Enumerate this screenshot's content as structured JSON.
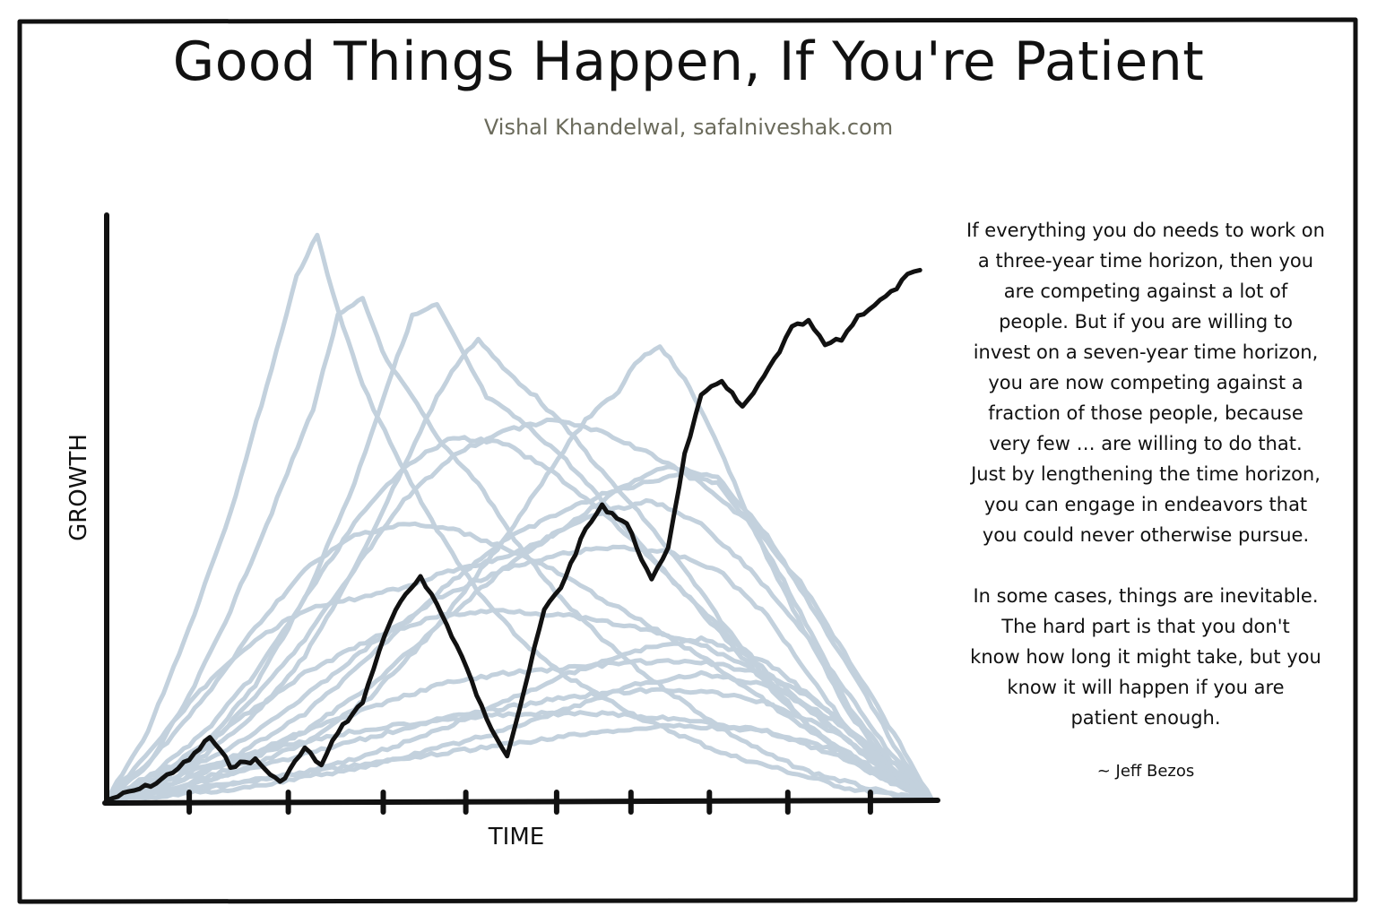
{
  "title": "Good Things Happen, If You're Patient",
  "subtitle": "Vishal Khandelwal, safalniveshak.com",
  "quote": {
    "paragraph1": "If everything you do needs to work on\na three-year time horizon, then you\nare competing against a lot of\npeople. But if you are willing to\ninvest on a seven-year time horizon,\nyou are now competing against a\nfraction of those people, because\nvery few … are willing to do that.\nJust by lengthening the time horizon,\nyou can engage in endeavors that\nyou could never otherwise pursue.",
    "paragraph2": "In some cases, things are inevitable.\nThe hard part is that you don't\nknow how long it might take, but you\nknow it will happen if you are\npatient enough.",
    "attribution": "~ Jeff Bezos"
  },
  "colors": {
    "highlight_line": "#111111",
    "background_lines": "#c3d1dd",
    "subtitle": "#6b6b5c"
  },
  "chart_data": {
    "type": "line",
    "title": "",
    "xlabel": "TIME",
    "ylabel": "GROWTH",
    "xlim": [
      0,
      100
    ],
    "ylim": [
      0,
      100
    ],
    "x_ticks": [
      10,
      22,
      33.5,
      43.5,
      54.5,
      63.5,
      73,
      82.5,
      92.5
    ],
    "grid": false,
    "series": [
      {
        "role": "highlighted path",
        "x": [
          0,
          6,
          10,
          12.5,
          15,
          18,
          21,
          24,
          26,
          28,
          31,
          33,
          35,
          38,
          40,
          43,
          46,
          48.5,
          50,
          53,
          55,
          58,
          60,
          63,
          66,
          68,
          70,
          72,
          74.5,
          77,
          79,
          81.5,
          83,
          85,
          87,
          89,
          91,
          93,
          95,
          97,
          98.5
        ],
        "y": [
          0,
          3,
          7,
          11,
          6,
          7,
          3,
          9,
          6,
          12,
          17,
          26,
          33,
          39,
          34,
          25,
          14,
          8,
          16,
          33,
          37,
          47,
          51,
          48,
          38,
          44,
          60,
          70,
          73,
          68,
          72,
          78,
          82,
          83,
          79,
          80,
          84,
          86,
          88,
          91,
          92
        ]
      },
      {
        "role": "other path",
        "x": [
          0,
          5,
          10,
          15,
          20,
          23,
          25.5,
          28,
          31,
          35,
          40,
          45,
          50,
          55,
          60,
          65,
          70,
          75,
          80,
          85,
          90,
          95,
          100
        ],
        "y": [
          0,
          12,
          30,
          50,
          75,
          91,
          98,
          85,
          72,
          60,
          47,
          36,
          28,
          22,
          18,
          14,
          11,
          8,
          6,
          4,
          2,
          1,
          0
        ]
      },
      {
        "role": "other path",
        "x": [
          0,
          5,
          10,
          15,
          20,
          25,
          28,
          31,
          34,
          37,
          40,
          45,
          50,
          55,
          60,
          65,
          70,
          75,
          80,
          85,
          90,
          95,
          100
        ],
        "y": [
          0,
          6,
          18,
          33,
          50,
          68,
          84,
          87,
          76,
          70,
          63,
          55,
          44,
          35,
          28,
          22,
          17,
          12,
          8,
          5,
          3,
          1,
          0
        ]
      },
      {
        "role": "other path",
        "x": [
          0,
          6,
          12,
          18,
          24,
          30,
          34,
          37,
          40,
          43,
          46,
          50,
          55,
          60,
          65,
          70,
          75,
          80,
          85,
          90,
          95,
          100
        ],
        "y": [
          0,
          4,
          10,
          20,
          35,
          55,
          72,
          84,
          86,
          78,
          70,
          66,
          60,
          52,
          44,
          36,
          28,
          20,
          13,
          7,
          3,
          0
        ]
      },
      {
        "role": "other path",
        "x": [
          0,
          6,
          12,
          18,
          24,
          30,
          36,
          40,
          43,
          45,
          48,
          52,
          56,
          60,
          65,
          70,
          75,
          80,
          85,
          90,
          95,
          100
        ],
        "y": [
          0,
          3,
          8,
          15,
          25,
          40,
          58,
          70,
          77,
          80,
          75,
          70,
          64,
          57,
          49,
          40,
          30,
          21,
          13,
          7,
          3,
          0
        ]
      },
      {
        "role": "other path",
        "x": [
          0,
          8,
          16,
          24,
          32,
          40,
          48,
          54,
          58,
          62,
          64,
          67,
          70,
          73,
          76,
          80,
          85,
          90,
          95,
          100
        ],
        "y": [
          0,
          2,
          5,
          10,
          18,
          30,
          45,
          58,
          66,
          71,
          76,
          79,
          73,
          65,
          55,
          42,
          28,
          15,
          6,
          0
        ]
      },
      {
        "role": "other path",
        "x": [
          0,
          8,
          16,
          24,
          32,
          40,
          48,
          55,
          60,
          65,
          70,
          74,
          78,
          82,
          86,
          90,
          95,
          100
        ],
        "y": [
          0,
          3,
          8,
          15,
          25,
          36,
          45,
          50,
          53,
          55,
          57,
          55,
          48,
          38,
          27,
          16,
          7,
          0
        ]
      },
      {
        "role": "other path",
        "x": [
          0,
          6,
          12,
          18,
          24,
          30,
          36,
          42,
          48,
          54,
          60,
          66,
          72,
          78,
          84,
          90,
          95,
          100
        ],
        "y": [
          0,
          5,
          12,
          22,
          35,
          48,
          58,
          63,
          62,
          57,
          50,
          42,
          33,
          25,
          17,
          10,
          4,
          0
        ]
      },
      {
        "role": "other path",
        "x": [
          0,
          6,
          12,
          18,
          24,
          30,
          36,
          42,
          48,
          54,
          60,
          66,
          72,
          78,
          84,
          90,
          95,
          100
        ],
        "y": [
          0,
          8,
          18,
          30,
          40,
          46,
          48,
          47,
          44,
          40,
          35,
          30,
          25,
          19,
          13,
          8,
          3,
          0
        ]
      },
      {
        "role": "other path",
        "x": [
          0,
          8,
          16,
          24,
          32,
          40,
          48,
          56,
          62,
          68,
          74,
          80,
          86,
          90,
          95,
          100
        ],
        "y": [
          0,
          4,
          10,
          18,
          27,
          35,
          40,
          43,
          44,
          43,
          40,
          32,
          20,
          12,
          5,
          0
        ]
      },
      {
        "role": "other path",
        "x": [
          0,
          8,
          16,
          24,
          32,
          40,
          48,
          56,
          64,
          72,
          78,
          84,
          90,
          95,
          100
        ],
        "y": [
          0,
          6,
          14,
          22,
          28,
          32,
          33,
          32,
          30,
          27,
          23,
          17,
          10,
          4,
          0
        ]
      },
      {
        "role": "other path",
        "x": [
          0,
          8,
          16,
          24,
          32,
          40,
          48,
          56,
          64,
          72,
          80,
          86,
          92,
          96,
          100
        ],
        "y": [
          0,
          3,
          7,
          12,
          16,
          20,
          22,
          23,
          24,
          24,
          22,
          17,
          10,
          4,
          0
        ]
      },
      {
        "role": "other path",
        "x": [
          0,
          8,
          16,
          24,
          32,
          40,
          48,
          56,
          64,
          72,
          80,
          88,
          94,
          100
        ],
        "y": [
          0,
          2,
          5,
          8,
          11,
          14,
          16,
          18,
          19,
          19,
          17,
          12,
          6,
          0
        ]
      },
      {
        "role": "other path",
        "x": [
          0,
          8,
          16,
          24,
          32,
          40,
          48,
          56,
          64,
          72,
          80,
          88,
          94,
          100
        ],
        "y": [
          0,
          1,
          3,
          5,
          8,
          12,
          17,
          22,
          26,
          28,
          24,
          15,
          6,
          0
        ]
      },
      {
        "role": "other path",
        "x": [
          0,
          6,
          12,
          18,
          24,
          30,
          36,
          42,
          48,
          54,
          60,
          66,
          72,
          78,
          84,
          90,
          95,
          100
        ],
        "y": [
          0,
          10,
          20,
          28,
          33,
          35,
          37,
          40,
          42,
          46,
          50,
          52,
          48,
          40,
          30,
          18,
          8,
          0
        ]
      },
      {
        "role": "other path",
        "x": [
          0,
          8,
          16,
          24,
          32,
          40,
          48,
          56,
          62,
          68,
          74,
          80,
          86,
          92,
          96,
          100
        ],
        "y": [
          0,
          2,
          6,
          12,
          20,
          30,
          40,
          48,
          54,
          58,
          56,
          46,
          32,
          18,
          8,
          0
        ]
      },
      {
        "role": "other path",
        "x": [
          0,
          8,
          16,
          24,
          32,
          40,
          48,
          56,
          64,
          72,
          80,
          88,
          94,
          100
        ],
        "y": [
          0,
          1,
          2,
          4,
          6,
          9,
          12,
          16,
          20,
          22,
          20,
          14,
          7,
          0
        ]
      },
      {
        "role": "other path",
        "x": [
          0,
          10,
          20,
          30,
          40,
          50,
          60,
          70,
          80,
          88,
          94,
          100
        ],
        "y": [
          0,
          5,
          9,
          12,
          14,
          15,
          15,
          14,
          12,
          8,
          4,
          0
        ]
      },
      {
        "role": "other path",
        "x": [
          0,
          6,
          12,
          18,
          24,
          30,
          36,
          42,
          48,
          54,
          60,
          66,
          72,
          78,
          84,
          90,
          96,
          100
        ],
        "y": [
          0,
          3,
          9,
          18,
          28,
          40,
          52,
          60,
          64,
          66,
          64,
          60,
          55,
          48,
          38,
          24,
          10,
          0
        ]
      },
      {
        "role": "other path",
        "x": [
          0,
          10,
          20,
          30,
          40,
          50,
          60,
          70,
          80,
          90,
          96,
          100
        ],
        "y": [
          0,
          2,
          4,
          6,
          8,
          10,
          12,
          13,
          12,
          8,
          3,
          0
        ]
      }
    ]
  }
}
